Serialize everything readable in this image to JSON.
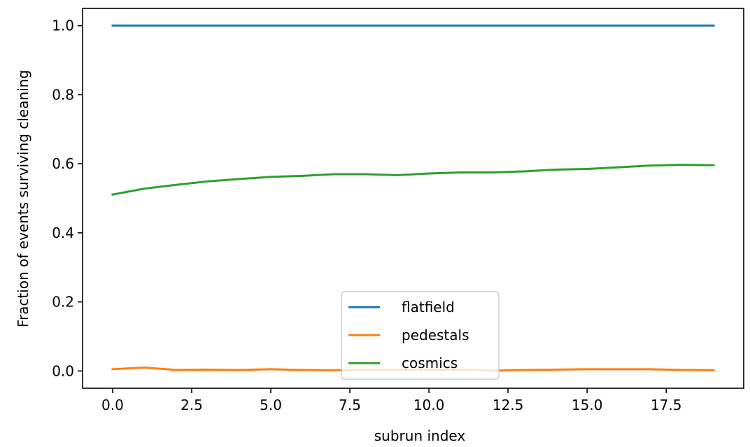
{
  "chart_data": {
    "type": "line",
    "title": "",
    "xlabel": "subrun index",
    "ylabel": "Fraction of events surviving cleaning",
    "xlim": [
      -0.95,
      19.95
    ],
    "ylim": [
      -0.05,
      1.05
    ],
    "xticks": [
      0.0,
      2.5,
      5.0,
      7.5,
      10.0,
      12.5,
      15.0,
      17.5
    ],
    "xtick_labels": [
      "0.0",
      "2.5",
      "5.0",
      "7.5",
      "10.0",
      "12.5",
      "15.0",
      "17.5"
    ],
    "yticks": [
      0.0,
      0.2,
      0.4,
      0.6,
      0.8,
      1.0
    ],
    "ytick_labels": [
      "0.0",
      "0.2",
      "0.4",
      "0.6",
      "0.8",
      "1.0"
    ],
    "grid": false,
    "legend_position": "lower-center",
    "x": [
      0,
      1,
      2,
      3,
      4,
      5,
      6,
      7,
      8,
      9,
      10,
      11,
      12,
      13,
      14,
      15,
      16,
      17,
      18,
      19
    ],
    "series": [
      {
        "name": "flatfield",
        "color": "#1f77b4",
        "values": [
          1.0,
          1.0,
          1.0,
          1.0,
          1.0,
          1.0,
          1.0,
          1.0,
          1.0,
          1.0,
          1.0,
          1.0,
          1.0,
          1.0,
          1.0,
          1.0,
          1.0,
          1.0,
          1.0,
          1.0
        ]
      },
      {
        "name": "pedestals",
        "color": "#ff7f0e",
        "values": [
          0.005,
          0.01,
          0.003,
          0.004,
          0.003,
          0.005,
          0.003,
          0.002,
          0.004,
          0.003,
          0.003,
          0.004,
          0.001,
          0.003,
          0.004,
          0.005,
          0.005,
          0.005,
          0.003,
          0.002
        ]
      },
      {
        "name": "cosmics",
        "color": "#2ca02c",
        "values": [
          0.511,
          0.528,
          0.539,
          0.549,
          0.556,
          0.562,
          0.565,
          0.57,
          0.57,
          0.567,
          0.572,
          0.575,
          0.575,
          0.578,
          0.583,
          0.585,
          0.59,
          0.595,
          0.597,
          0.596
        ]
      }
    ]
  }
}
